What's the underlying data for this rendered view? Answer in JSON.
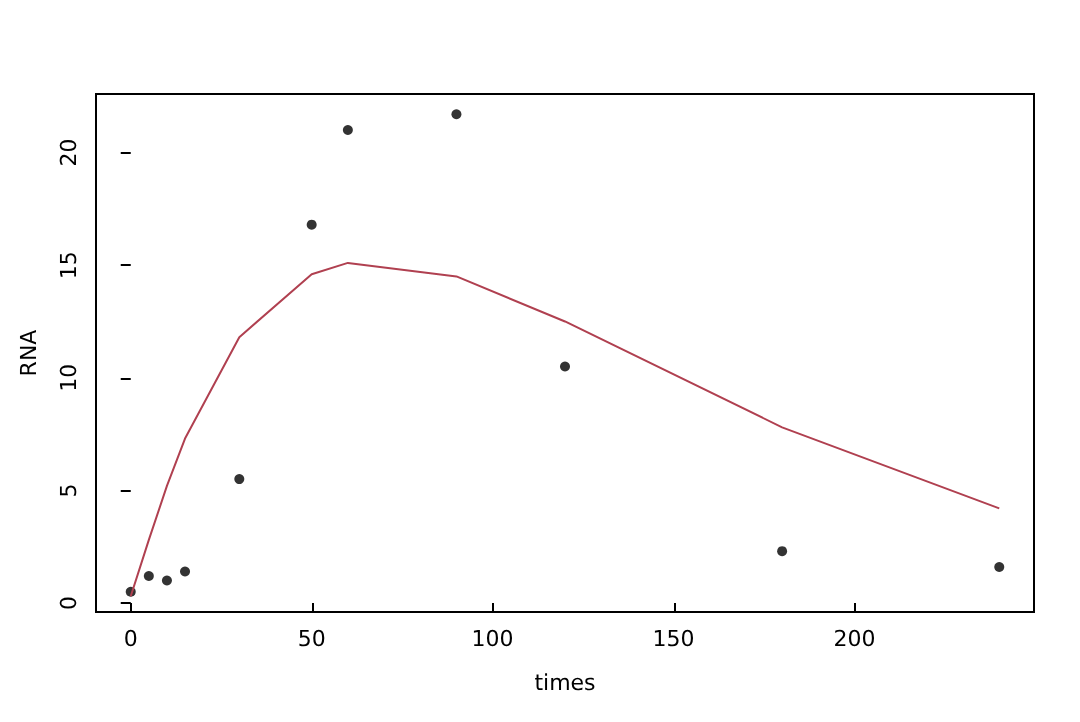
{
  "chart_data": {
    "type": "scatter",
    "xlabel": "times",
    "ylabel": "RNA",
    "xlim": [
      -9.6,
      249.6
    ],
    "ylim": [
      -0.4,
      22.6
    ],
    "xticks": [
      0,
      50,
      100,
      150,
      200
    ],
    "yticks": [
      0,
      5,
      10,
      15,
      20
    ],
    "series": [
      {
        "marker": "circle",
        "color": "#000000",
        "x": [
          0,
          5,
          10,
          15,
          30,
          50,
          60,
          90,
          120,
          180,
          240
        ],
        "values": [
          0.5,
          1.2,
          1.0,
          1.4,
          5.5,
          16.8,
          21.0,
          21.7,
          10.5,
          2.3,
          1.6
        ]
      },
      {
        "type": "line",
        "marker": "none",
        "color": "#b04050",
        "x": [
          0,
          5,
          10,
          15,
          30,
          50,
          60,
          90,
          120,
          180,
          240
        ],
        "values": [
          0.3,
          2.8,
          5.2,
          7.3,
          11.8,
          14.6,
          15.1,
          14.5,
          12.5,
          7.8,
          4.2
        ]
      }
    ]
  }
}
